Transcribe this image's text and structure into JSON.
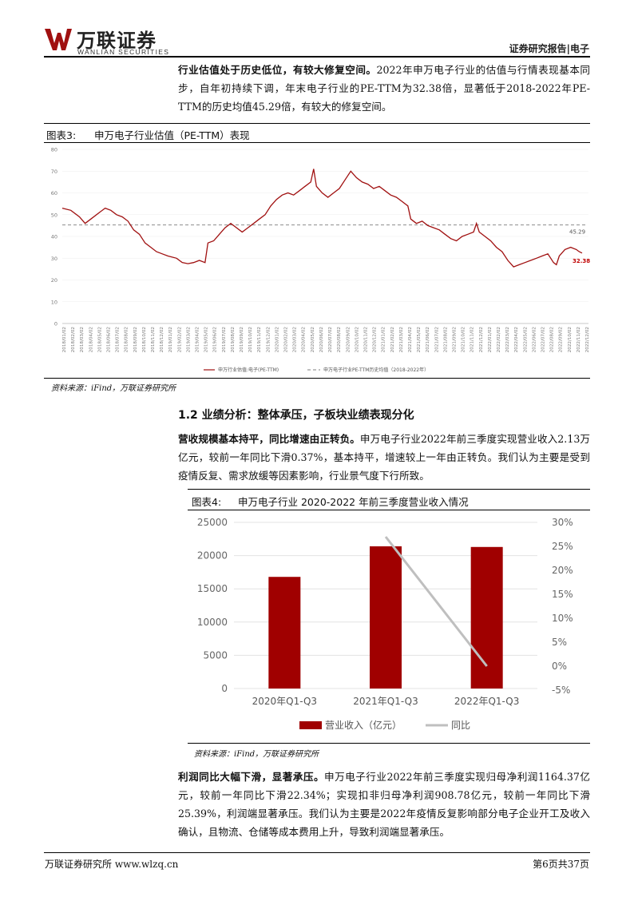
{
  "header": {
    "logo_cn": "万联证券",
    "logo_en": "WANLIAN SECURITIES",
    "right": "证券研究报告|电子",
    "brand_color": "#a01010"
  },
  "para1": {
    "lead": "行业估值处于历史低位，有较大修复空间。",
    "body": "2022年申万电子行业的估值与行情表现基本同步，自年初持续下调，年末电子行业的PE-TTM为32.38倍，显著低于2018-2022年PE-TTM的历史均值45.29倍，有较大的修复空间。"
  },
  "fig3": {
    "label": "图表3:",
    "title": "申万电子行业估值（PE-TTM）表现",
    "source": "资料来源：iFind，万联证券研究所"
  },
  "section": {
    "title": "1.2  业绩分析：整体承压，子板块业绩表现分化"
  },
  "para2": {
    "lead": "营收规模基本持平，同比增速由正转负。",
    "body": "申万电子行业2022年前三季度实现营业收入2.13万亿元，较前一年同比下滑0.37%，基本持平，增速较上一年由正转负。我们认为主要是受到疫情反复、需求放缓等因素影响，行业景气度下行所致。"
  },
  "fig4": {
    "label": "图表4:",
    "title": "申万电子行业 2020-2022 年前三季度营业收入情况",
    "source": "资料来源：iFind，万联证券研究所"
  },
  "para3": {
    "lead": "利润同比大幅下滑，显著承压。",
    "body": "申万电子行业2022年前三季度实现归母净利润1164.37亿元，较前一年同比下滑22.34%；实现扣非归母净利润908.78亿元，较前一年同比下滑25.39%，利润端显著承压。我们认为主要是2022年疫情反复影响部分电子企业开工及收入确认，且物流、仓储等成本费用上升，导致利润端显著承压。"
  },
  "footer": {
    "left": "万联证券研究所  www.wlzq.cn",
    "right": "第6页共37页"
  },
  "chart_data": [
    {
      "type": "line",
      "series": [
        {
          "name": "申万行业估值:电子(PE-TTM)",
          "color": "#a01010",
          "points": [
            [
              0,
              53
            ],
            [
              3,
              52
            ],
            [
              6,
              49
            ],
            [
              8,
              46
            ],
            [
              10,
              48
            ],
            [
              13,
              51
            ],
            [
              15,
              53
            ],
            [
              17,
              52
            ],
            [
              19,
              50
            ],
            [
              21,
              49
            ],
            [
              23,
              47
            ],
            [
              25,
              43
            ],
            [
              27,
              41
            ],
            [
              29,
              37
            ],
            [
              31,
              35
            ],
            [
              33,
              33
            ],
            [
              35,
              32
            ],
            [
              37,
              31
            ],
            [
              40,
              30
            ],
            [
              42,
              28
            ],
            [
              44,
              27.5
            ],
            [
              46,
              28
            ],
            [
              48,
              29
            ],
            [
              50,
              28
            ],
            [
              51,
              37
            ],
            [
              53,
              38
            ],
            [
              55,
              41
            ],
            [
              57,
              44
            ],
            [
              59,
              46
            ],
            [
              61,
              44
            ],
            [
              63,
              42
            ],
            [
              65,
              44
            ],
            [
              67,
              46
            ],
            [
              69,
              48
            ],
            [
              71,
              50
            ],
            [
              73,
              54
            ],
            [
              75,
              57
            ],
            [
              77,
              59
            ],
            [
              79,
              60
            ],
            [
              81,
              59
            ],
            [
              83,
              61
            ],
            [
              85,
              63
            ],
            [
              87,
              65
            ],
            [
              88,
              71
            ],
            [
              89,
              63
            ],
            [
              91,
              60
            ],
            [
              93,
              58
            ],
            [
              95,
              60
            ],
            [
              97,
              62
            ],
            [
              99,
              66
            ],
            [
              101,
              70
            ],
            [
              103,
              67
            ],
            [
              105,
              65
            ],
            [
              107,
              64
            ],
            [
              109,
              62
            ],
            [
              111,
              63
            ],
            [
              113,
              61
            ],
            [
              115,
              59
            ],
            [
              117,
              58
            ],
            [
              119,
              56
            ],
            [
              121,
              54
            ],
            [
              122,
              48
            ],
            [
              124,
              46
            ],
            [
              126,
              47
            ],
            [
              128,
              45
            ],
            [
              130,
              44
            ],
            [
              132,
              43
            ],
            [
              134,
              41
            ],
            [
              136,
              39
            ],
            [
              138,
              38
            ],
            [
              140,
              40
            ],
            [
              142,
              41
            ],
            [
              144,
              42
            ],
            [
              145,
              46
            ],
            [
              146,
              42
            ],
            [
              148,
              40
            ],
            [
              150,
              38
            ],
            [
              152,
              35
            ],
            [
              154,
              33
            ],
            [
              156,
              29
            ],
            [
              158,
              26
            ],
            [
              160,
              27
            ],
            [
              162,
              28
            ],
            [
              164,
              29
            ],
            [
              166,
              30
            ],
            [
              168,
              31
            ],
            [
              170,
              32
            ],
            [
              171,
              30
            ],
            [
              172,
              28
            ],
            [
              173,
              27
            ],
            [
              174,
              31
            ],
            [
              176,
              34
            ],
            [
              178,
              35
            ],
            [
              180,
              34
            ],
            [
              181,
              33
            ],
            [
              182,
              32.38
            ]
          ]
        },
        {
          "name": "申万电子行业PE-TTM历史均值（2018-2022年）",
          "color": "#999999",
          "value": 45.29
        }
      ],
      "x_ticks": [
        "2018/01/02",
        "2018/02/02",
        "2018/03/02",
        "2018/04/02",
        "2018/05/02",
        "2018/06/02",
        "2018/07/02",
        "2018/08/02",
        "2018/09/02",
        "2018/10/02",
        "2018/11/02",
        "2018/12/02",
        "2019/01/02",
        "2019/02/02",
        "2019/03/02",
        "2019/04/02",
        "2019/05/02",
        "2019/06/02",
        "2019/07/02",
        "2019/08/02",
        "2019/09/02",
        "2019/10/02",
        "2019/11/02",
        "2019/12/02",
        "2020/01/02",
        "2020/02/02",
        "2020/03/02",
        "2020/04/02",
        "2020/05/02",
        "2020/06/02",
        "2020/07/02",
        "2020/08/02",
        "2020/09/02",
        "2020/10/02",
        "2020/11/02",
        "2020/12/02",
        "2021/01/02",
        "2021/02/02",
        "2021/03/02",
        "2021/04/02",
        "2021/05/02",
        "2021/06/02",
        "2021/07/02",
        "2021/08/02",
        "2021/09/02",
        "2021/10/02",
        "2021/11/02",
        "2021/12/02",
        "2022/01/02",
        "2022/02/02",
        "2022/03/02",
        "2022/04/02",
        "2022/05/02",
        "2022/06/02",
        "2022/07/02",
        "2022/08/02",
        "2022/09/02",
        "2022/10/02",
        "2022/11/02",
        "2022/12/02"
      ],
      "ylim": [
        0,
        80
      ],
      "y_ticks": [
        0,
        10,
        20,
        30,
        40,
        50,
        60,
        70,
        80
      ],
      "annotations": [
        "45.29",
        "32.38"
      ],
      "legend_position": "bottom"
    },
    {
      "type": "bar",
      "categories": [
        "2020年Q1-Q3",
        "2021年Q1-Q3",
        "2022年Q1-Q3"
      ],
      "series": [
        {
          "name": "营业收入（亿元）",
          "values": [
            16800,
            21400,
            21300
          ],
          "axis": "left",
          "color": "#a00000"
        },
        {
          "name": "同比",
          "values": [
            null,
            27,
            0
          ],
          "axis": "right",
          "type": "line",
          "color": "#bfbfbf"
        }
      ],
      "ylim": [
        0,
        25000
      ],
      "y_ticks": [
        "0",
        "5000",
        "10000",
        "15000",
        "20000",
        "25000"
      ],
      "y2lim": [
        -5,
        30
      ],
      "y2_ticks": [
        "-5%",
        "0%",
        "5%",
        "10%",
        "15%",
        "20%",
        "25%",
        "30%"
      ],
      "legend_position": "bottom"
    }
  ]
}
